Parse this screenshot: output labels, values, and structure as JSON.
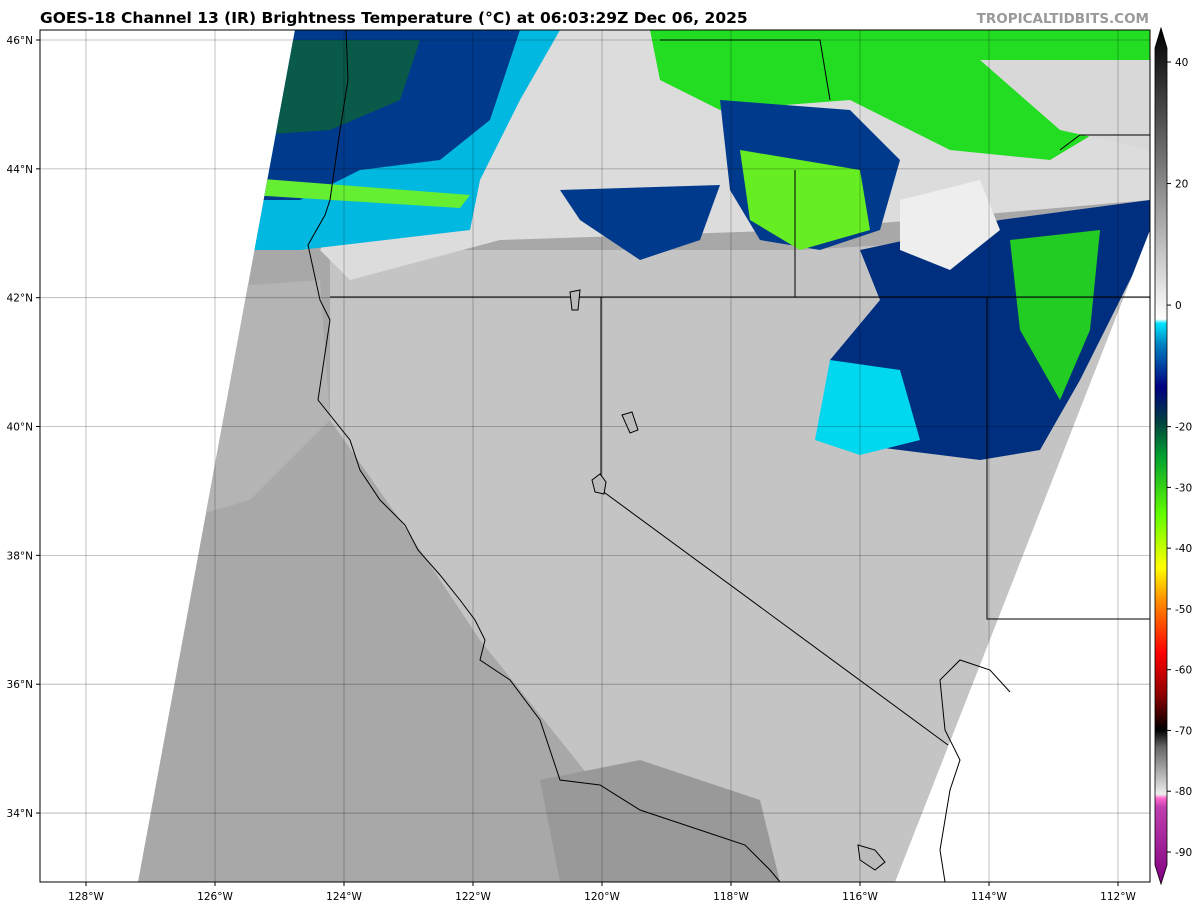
{
  "title": "GOES-18 Channel 13 (IR) Brightness Temperature (°C) at 06:03:29Z Dec 06, 2025",
  "brand": "TROPICALTIDBITS.COM",
  "map": {
    "lon_ticks": [
      "128°W",
      "126°W",
      "124°W",
      "122°W",
      "120°W",
      "118°W",
      "116°W",
      "114°W",
      "112°W"
    ],
    "lat_ticks": [
      "46°N",
      "44°N",
      "42°N",
      "40°N",
      "38°N",
      "36°N",
      "34°N"
    ],
    "lon_values": [
      -128,
      -126,
      -124,
      -122,
      -120,
      -118,
      -116,
      -114,
      -112
    ],
    "lat_values": [
      46,
      44,
      42,
      40,
      38,
      36,
      34
    ]
  },
  "colorbar": {
    "ticks": [
      "40",
      "20",
      "0",
      "-20",
      "-30",
      "-40",
      "-50",
      "-60",
      "-70",
      "-80",
      "-90"
    ],
    "tick_values": [
      40,
      20,
      0,
      -20,
      -30,
      -40,
      -50,
      -60,
      -70,
      -80,
      -90
    ],
    "range": [
      -93,
      46
    ],
    "colors": {
      "warm_gray_top": "#000000",
      "cold_gray": "#ffffff",
      "cyan": "#00e5ff",
      "navy": "#000080",
      "green": "#00ff00",
      "yellow": "#ffff00",
      "red": "#ff0000",
      "magenta": "#ff66cc",
      "purple": "#800080"
    }
  }
}
